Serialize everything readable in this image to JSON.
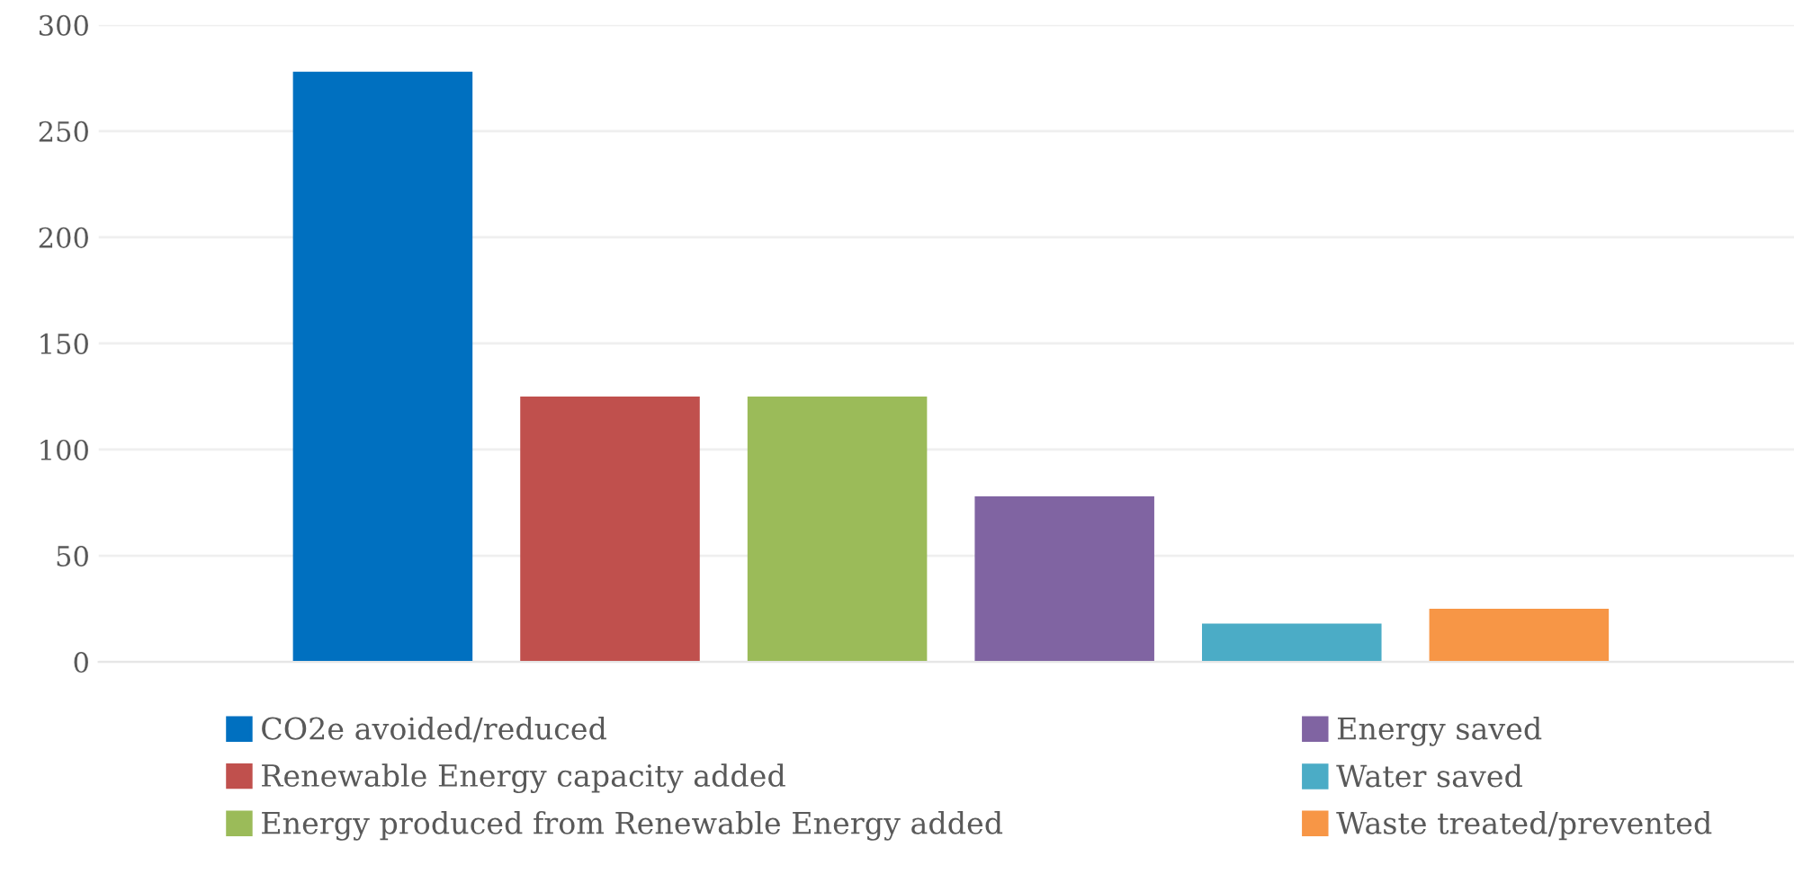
{
  "chart_data": {
    "type": "bar",
    "categories": [
      null,
      null,
      null,
      null,
      null,
      null
    ],
    "series": [
      {
        "name": "CO2e avoided/reduced",
        "color": "#0070c0",
        "values": [
          278,
          null,
          null,
          null,
          null,
          null
        ]
      },
      {
        "name": "Renewable Energy capacity added",
        "color": "#c0504d",
        "values": [
          null,
          125,
          null,
          null,
          null,
          null
        ]
      },
      {
        "name": "Energy produced from Renewable Energy added",
        "color": "#9bbb59",
        "values": [
          null,
          null,
          125,
          null,
          null,
          null
        ]
      },
      {
        "name": "Energy saved",
        "color": "#8064a2",
        "values": [
          null,
          null,
          null,
          78,
          null,
          null
        ]
      },
      {
        "name": "Water saved",
        "color": "#4bacc6",
        "values": [
          null,
          null,
          null,
          null,
          18,
          null
        ]
      },
      {
        "name": "Waste treated/prevented",
        "color": "#f79646",
        "values": [
          null,
          null,
          null,
          null,
          null,
          25
        ]
      }
    ],
    "ylim": [
      0,
      300
    ],
    "yticks": [
      0,
      50,
      100,
      150,
      200,
      250,
      300
    ],
    "grid": "y",
    "legend": "bottom"
  }
}
